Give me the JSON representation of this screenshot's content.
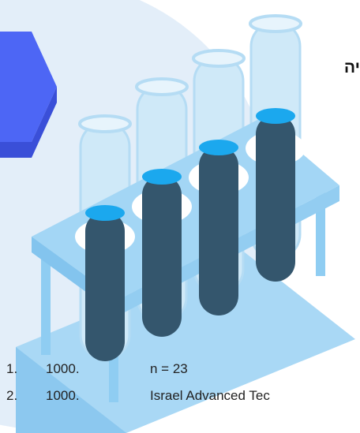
{
  "heading": "יה",
  "list": [
    {
      "number": "1.",
      "value": "1000.",
      "text": "n = 23"
    },
    {
      "number": "2.",
      "value": "1000.",
      "text": "Israel Advanced Tec"
    }
  ]
}
